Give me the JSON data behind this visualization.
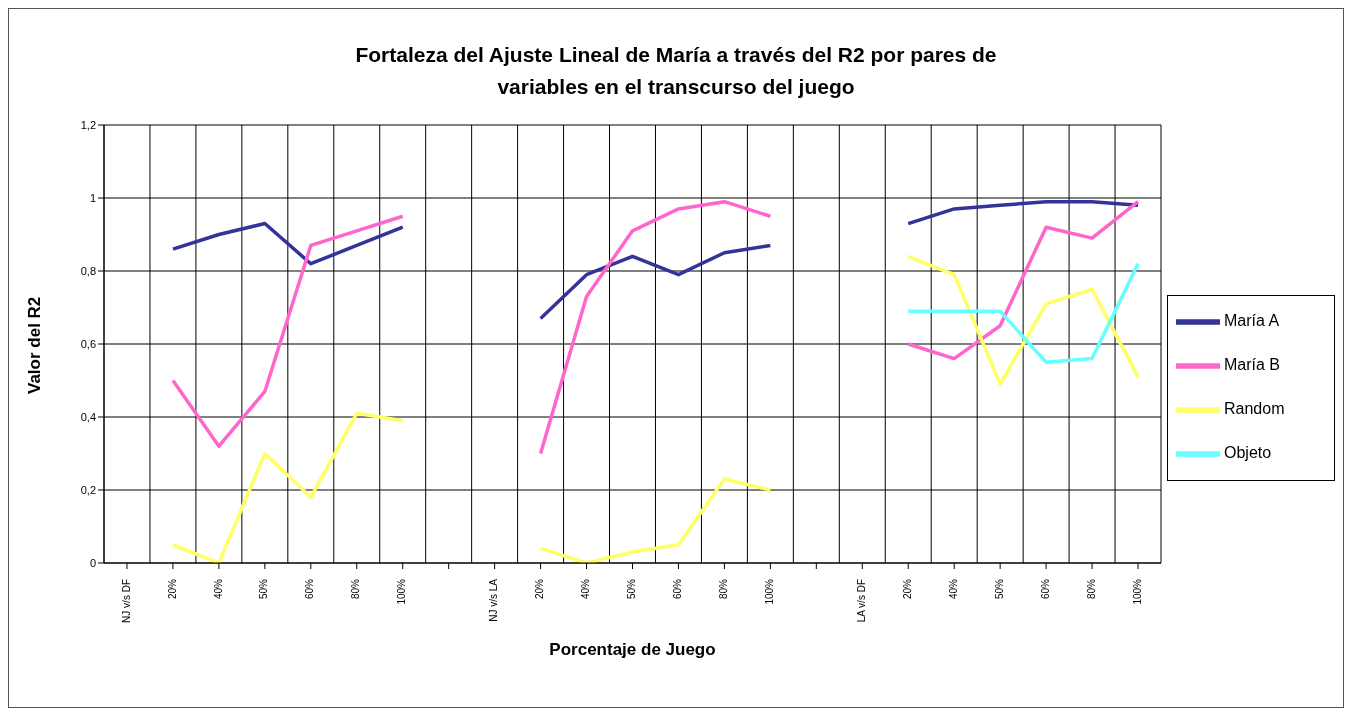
{
  "chart_data": {
    "type": "line",
    "title": "Fortaleza del Ajuste Lineal de María a través del R2 por pares de variables en el transcurso del juego",
    "xlabel": "Porcentaje de Juego",
    "ylabel": "Valor del R2",
    "categories": [
      "NJ v/s DF",
      "20%",
      "40%",
      "50%",
      "60%",
      "80%",
      "100%",
      null,
      "NJ v/s LA",
      "20%",
      "40%",
      "50%",
      "60%",
      "80%",
      "100%",
      null,
      "LA v/s DF",
      "20%",
      "40%",
      "50%",
      "60%",
      "80%",
      "100%"
    ],
    "series": [
      {
        "name": "María A",
        "color": "#333399",
        "values": [
          null,
          0.86,
          0.9,
          0.93,
          0.82,
          0.87,
          0.92,
          null,
          null,
          0.67,
          0.79,
          0.84,
          0.79,
          0.85,
          0.87,
          null,
          null,
          0.93,
          0.97,
          0.98,
          0.99,
          0.99,
          0.98
        ]
      },
      {
        "name": "María B",
        "color": "#ff66cc",
        "values": [
          null,
          0.5,
          0.32,
          0.47,
          0.87,
          0.91,
          0.95,
          null,
          null,
          0.3,
          0.73,
          0.91,
          0.97,
          0.99,
          0.95,
          null,
          null,
          0.6,
          0.56,
          0.65,
          0.92,
          0.89,
          0.99
        ]
      },
      {
        "name": "Random",
        "color": "#ffff66",
        "values": [
          null,
          0.05,
          0.0,
          0.3,
          0.18,
          0.41,
          0.39,
          null,
          null,
          0.04,
          0.0,
          0.03,
          0.05,
          0.23,
          0.2,
          null,
          null,
          0.84,
          0.79,
          0.49,
          0.71,
          0.75,
          0.51
        ]
      },
      {
        "name": "Objeto",
        "color": "#66ffff",
        "values": [
          null,
          null,
          null,
          null,
          null,
          null,
          null,
          null,
          null,
          null,
          null,
          null,
          null,
          null,
          null,
          null,
          null,
          0.69,
          0.69,
          0.69,
          0.55,
          0.56,
          0.82
        ]
      }
    ],
    "ylim": [
      0,
      1.2
    ],
    "yticks": [
      0,
      {
        "value": 0.2,
        "label": "0,2"
      },
      {
        "value": 0.4,
        "label": "0,4"
      },
      {
        "value": 0.6,
        "label": "0,6"
      },
      {
        "value": 0.8,
        "label": "0,8"
      },
      1,
      {
        "value": 1.2,
        "label": "1,2"
      }
    ],
    "grid": true,
    "legend": "right",
    "marker": "none",
    "line_style": "solid"
  }
}
